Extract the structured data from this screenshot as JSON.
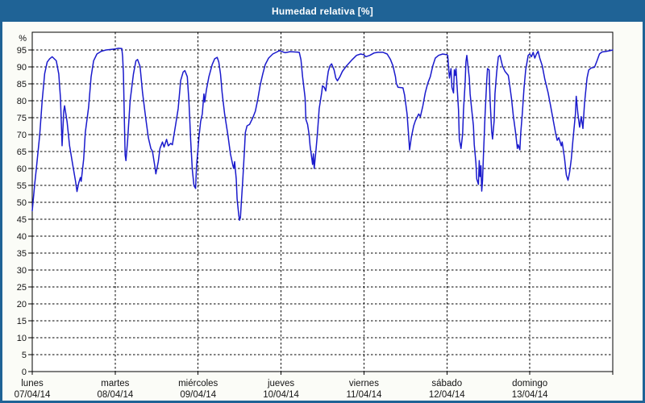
{
  "title": "Humedad relativa [%]",
  "colors": {
    "titlebar_bg": "#1F6396",
    "window_border": "#1F6396",
    "page_bg": "#FBFCF7",
    "plot_bg": "#FFFFFF",
    "grid": "#000000",
    "series_line": "#1A1ACC",
    "title_text": "#FFFFFF",
    "axis_text": "#141414"
  },
  "chart_data": {
    "type": "line",
    "title": "Humedad relativa [%]",
    "ylabel": "%",
    "y_axis_unit": "%",
    "ylim": [
      0,
      100
    ],
    "y_ticks": [
      0,
      5,
      10,
      15,
      20,
      25,
      30,
      35,
      40,
      45,
      50,
      55,
      60,
      65,
      70,
      75,
      80,
      85,
      90,
      95
    ],
    "grid": "dashed",
    "legend": false,
    "x_axis": {
      "unit": "days",
      "range_days": [
        0,
        7
      ],
      "day_labels": [
        {
          "weekday": "lunes",
          "date": "07/04/14"
        },
        {
          "weekday": "martes",
          "date": "08/04/14"
        },
        {
          "weekday": "miércoles",
          "date": "09/04/14"
        },
        {
          "weekday": "jueves",
          "date": "10/04/14"
        },
        {
          "weekday": "viernes",
          "date": "11/04/14"
        },
        {
          "weekday": "sábado",
          "date": "12/04/14"
        },
        {
          "weekday": "domingo",
          "date": "13/04/14"
        }
      ]
    },
    "series": [
      {
        "name": "Humedad relativa",
        "color": "#1A1ACC",
        "points": [
          [
            0.0,
            47.5
          ],
          [
            0.03,
            55.5
          ],
          [
            0.05,
            60
          ],
          [
            0.07,
            65
          ],
          [
            0.09,
            70
          ],
          [
            0.12,
            80
          ],
          [
            0.15,
            88
          ],
          [
            0.18,
            91.4
          ],
          [
            0.21,
            92.4
          ],
          [
            0.24,
            93
          ],
          [
            0.29,
            91.8
          ],
          [
            0.32,
            87.9
          ],
          [
            0.34,
            80.8
          ],
          [
            0.35,
            73.8
          ],
          [
            0.36,
            66.7
          ],
          [
            0.38,
            77
          ],
          [
            0.39,
            78.5
          ],
          [
            0.42,
            73.8
          ],
          [
            0.45,
            66.7
          ],
          [
            0.49,
            60.8
          ],
          [
            0.52,
            56.5
          ],
          [
            0.54,
            53.2
          ],
          [
            0.56,
            55.7
          ],
          [
            0.58,
            57.3
          ],
          [
            0.59,
            56.2
          ],
          [
            0.62,
            62.8
          ],
          [
            0.64,
            70.6
          ],
          [
            0.68,
            78.1
          ],
          [
            0.71,
            87.1
          ],
          [
            0.74,
            91.8
          ],
          [
            0.78,
            93.8
          ],
          [
            0.83,
            94.6
          ],
          [
            0.89,
            95
          ],
          [
            1.0,
            95.3
          ],
          [
            1.04,
            95.5
          ],
          [
            1.08,
            95.4
          ],
          [
            1.09,
            93
          ],
          [
            1.1,
            87.9
          ],
          [
            1.11,
            75
          ],
          [
            1.12,
            64
          ],
          [
            1.13,
            62.3
          ],
          [
            1.15,
            68.3
          ],
          [
            1.18,
            80
          ],
          [
            1.22,
            87.9
          ],
          [
            1.25,
            91.8
          ],
          [
            1.27,
            92.2
          ],
          [
            1.3,
            90.2
          ],
          [
            1.33,
            82.4
          ],
          [
            1.37,
            74.6
          ],
          [
            1.4,
            69.1
          ],
          [
            1.43,
            65.9
          ],
          [
            1.45,
            65.1
          ],
          [
            1.48,
            60.4
          ],
          [
            1.49,
            58.4
          ],
          [
            1.52,
            62
          ],
          [
            1.54,
            65.9
          ],
          [
            1.57,
            67.8
          ],
          [
            1.59,
            66.3
          ],
          [
            1.62,
            68.6
          ],
          [
            1.64,
            66.7
          ],
          [
            1.67,
            67.4
          ],
          [
            1.69,
            67
          ],
          [
            1.73,
            73
          ],
          [
            1.76,
            77.7
          ],
          [
            1.79,
            86
          ],
          [
            1.82,
            88.5
          ],
          [
            1.84,
            88.9
          ],
          [
            1.87,
            87.1
          ],
          [
            1.89,
            79.6
          ],
          [
            1.91,
            68.3
          ],
          [
            1.93,
            59.7
          ],
          [
            1.95,
            54.9
          ],
          [
            1.97,
            54.1
          ],
          [
            1.98,
            60.4
          ],
          [
            2.01,
            69.1
          ],
          [
            2.03,
            73.8
          ],
          [
            2.05,
            76.1
          ],
          [
            2.07,
            82
          ],
          [
            2.08,
            79.6
          ],
          [
            2.1,
            83.2
          ],
          [
            2.13,
            87.1
          ],
          [
            2.17,
            90.7
          ],
          [
            2.2,
            92.4
          ],
          [
            2.23,
            92.8
          ],
          [
            2.25,
            91.4
          ],
          [
            2.27,
            87.9
          ],
          [
            2.29,
            82.4
          ],
          [
            2.32,
            76.1
          ],
          [
            2.36,
            69.8
          ],
          [
            2.39,
            64.3
          ],
          [
            2.42,
            60.8
          ],
          [
            2.43,
            60
          ],
          [
            2.44,
            62
          ],
          [
            2.46,
            56.9
          ],
          [
            2.47,
            51
          ],
          [
            2.49,
            46.3
          ],
          [
            2.5,
            44.7
          ],
          [
            2.51,
            45.5
          ],
          [
            2.52,
            49.4
          ],
          [
            2.54,
            57.3
          ],
          [
            2.56,
            65.9
          ],
          [
            2.57,
            70.6
          ],
          [
            2.59,
            72.6
          ],
          [
            2.62,
            73
          ],
          [
            2.66,
            75
          ],
          [
            2.69,
            76.9
          ],
          [
            2.72,
            80.5
          ],
          [
            2.75,
            84.8
          ],
          [
            2.78,
            87.9
          ],
          [
            2.81,
            90.7
          ],
          [
            2.85,
            92.6
          ],
          [
            2.9,
            93.8
          ],
          [
            2.95,
            94.4
          ],
          [
            2.98,
            94.8
          ],
          [
            3.05,
            94.2
          ],
          [
            3.11,
            94.5
          ],
          [
            3.17,
            94.4
          ],
          [
            3.22,
            94.3
          ],
          [
            3.24,
            92.1
          ],
          [
            3.26,
            87.1
          ],
          [
            3.29,
            80.9
          ],
          [
            3.3,
            74.5
          ],
          [
            3.32,
            73
          ],
          [
            3.34,
            69.8
          ],
          [
            3.35,
            66.7
          ],
          [
            3.37,
            63.2
          ],
          [
            3.38,
            61.2
          ],
          [
            3.39,
            64.3
          ],
          [
            3.4,
            60
          ],
          [
            3.42,
            65.1
          ],
          [
            3.44,
            70.6
          ],
          [
            3.46,
            77.7
          ],
          [
            3.49,
            82.4
          ],
          [
            3.5,
            84.4
          ],
          [
            3.52,
            84
          ],
          [
            3.54,
            82.9
          ],
          [
            3.55,
            85.2
          ],
          [
            3.57,
            88.7
          ],
          [
            3.59,
            90.3
          ],
          [
            3.61,
            90.9
          ],
          [
            3.64,
            89.1
          ],
          [
            3.66,
            86.7
          ],
          [
            3.68,
            85.9
          ],
          [
            3.71,
            87.1
          ],
          [
            3.74,
            88.7
          ],
          [
            3.79,
            90.3
          ],
          [
            3.86,
            92.2
          ],
          [
            3.91,
            93.4
          ],
          [
            3.96,
            93.8
          ],
          [
            4.0,
            93.6
          ],
          [
            4.02,
            93
          ],
          [
            4.07,
            93.4
          ],
          [
            4.12,
            94.1
          ],
          [
            4.17,
            94.3
          ],
          [
            4.23,
            94.3
          ],
          [
            4.28,
            93.8
          ],
          [
            4.32,
            92.2
          ],
          [
            4.35,
            90.3
          ],
          [
            4.38,
            87.1
          ],
          [
            4.39,
            85.2
          ],
          [
            4.41,
            84
          ],
          [
            4.47,
            83.8
          ],
          [
            4.49,
            81.7
          ],
          [
            4.52,
            76.1
          ],
          [
            4.54,
            69.1
          ],
          [
            4.55,
            65.5
          ],
          [
            4.57,
            69.1
          ],
          [
            4.6,
            72.6
          ],
          [
            4.62,
            74.1
          ],
          [
            4.66,
            76.1
          ],
          [
            4.68,
            75.3
          ],
          [
            4.71,
            78.5
          ],
          [
            4.74,
            82.4
          ],
          [
            4.77,
            85.2
          ],
          [
            4.8,
            87.1
          ],
          [
            4.83,
            90.3
          ],
          [
            4.86,
            92.6
          ],
          [
            4.9,
            93.4
          ],
          [
            4.95,
            93.8
          ],
          [
            5.0,
            93.6
          ],
          [
            5.01,
            93.4
          ],
          [
            5.03,
            86.7
          ],
          [
            5.05,
            89.5
          ],
          [
            5.06,
            84
          ],
          [
            5.08,
            82.3
          ],
          [
            5.09,
            89.1
          ],
          [
            5.1,
            87.5
          ],
          [
            5.11,
            89.5
          ],
          [
            5.14,
            77.3
          ],
          [
            5.15,
            68.7
          ],
          [
            5.17,
            65.9
          ],
          [
            5.19,
            70.2
          ],
          [
            5.2,
            77.3
          ],
          [
            5.22,
            85.2
          ],
          [
            5.23,
            91.5
          ],
          [
            5.24,
            93.4
          ],
          [
            5.27,
            86.7
          ],
          [
            5.28,
            82
          ],
          [
            5.3,
            77.3
          ],
          [
            5.32,
            72.6
          ],
          [
            5.33,
            67.1
          ],
          [
            5.35,
            61.6
          ],
          [
            5.36,
            56.9
          ],
          [
            5.38,
            55.3
          ],
          [
            5.39,
            62.3
          ],
          [
            5.4,
            57.6
          ],
          [
            5.41,
            60.8
          ],
          [
            5.42,
            53.3
          ],
          [
            5.43,
            56.5
          ],
          [
            5.44,
            63.1
          ],
          [
            5.46,
            75.7
          ],
          [
            5.48,
            85.9
          ],
          [
            5.49,
            89.5
          ],
          [
            5.51,
            89.1
          ],
          [
            5.52,
            80.5
          ],
          [
            5.54,
            71
          ],
          [
            5.55,
            68.7
          ],
          [
            5.57,
            74.1
          ],
          [
            5.58,
            82
          ],
          [
            5.6,
            88.3
          ],
          [
            5.62,
            93
          ],
          [
            5.64,
            93.4
          ],
          [
            5.67,
            90.3
          ],
          [
            5.7,
            88.7
          ],
          [
            5.74,
            87.5
          ],
          [
            5.75,
            86
          ],
          [
            5.78,
            80.5
          ],
          [
            5.8,
            75.7
          ],
          [
            5.83,
            70.2
          ],
          [
            5.85,
            65.9
          ],
          [
            5.86,
            67
          ],
          [
            5.88,
            65.5
          ],
          [
            5.89,
            70.2
          ],
          [
            5.91,
            76.5
          ],
          [
            5.93,
            83.6
          ],
          [
            5.95,
            89.1
          ],
          [
            5.98,
            93.4
          ],
          [
            6.0,
            93.8
          ],
          [
            6.02,
            93
          ],
          [
            6.04,
            94.3
          ],
          [
            6.06,
            92.6
          ],
          [
            6.08,
            93.8
          ],
          [
            6.1,
            94.6
          ],
          [
            6.12,
            92.6
          ],
          [
            6.15,
            90.3
          ],
          [
            6.18,
            86.4
          ],
          [
            6.22,
            82.4
          ],
          [
            6.25,
            78.5
          ],
          [
            6.28,
            74.6
          ],
          [
            6.31,
            70.6
          ],
          [
            6.33,
            68.3
          ],
          [
            6.35,
            69.1
          ],
          [
            6.38,
            66.7
          ],
          [
            6.39,
            67.8
          ],
          [
            6.42,
            62.8
          ],
          [
            6.44,
            58.1
          ],
          [
            6.46,
            56.5
          ],
          [
            6.48,
            58.9
          ],
          [
            6.5,
            62.8
          ],
          [
            6.52,
            68.3
          ],
          [
            6.55,
            76.1
          ],
          [
            6.56,
            81.3
          ],
          [
            6.58,
            76.1
          ],
          [
            6.6,
            72.2
          ],
          [
            6.62,
            75.3
          ],
          [
            6.64,
            71.8
          ],
          [
            6.66,
            79.3
          ],
          [
            6.69,
            86.7
          ],
          [
            6.71,
            89.1
          ],
          [
            6.74,
            89.7
          ],
          [
            6.78,
            89.9
          ],
          [
            6.81,
            91.8
          ],
          [
            6.84,
            93.8
          ],
          [
            6.87,
            94.4
          ],
          [
            6.92,
            94.6
          ],
          [
            6.97,
            94.8
          ],
          [
            7.0,
            95
          ]
        ]
      }
    ]
  }
}
